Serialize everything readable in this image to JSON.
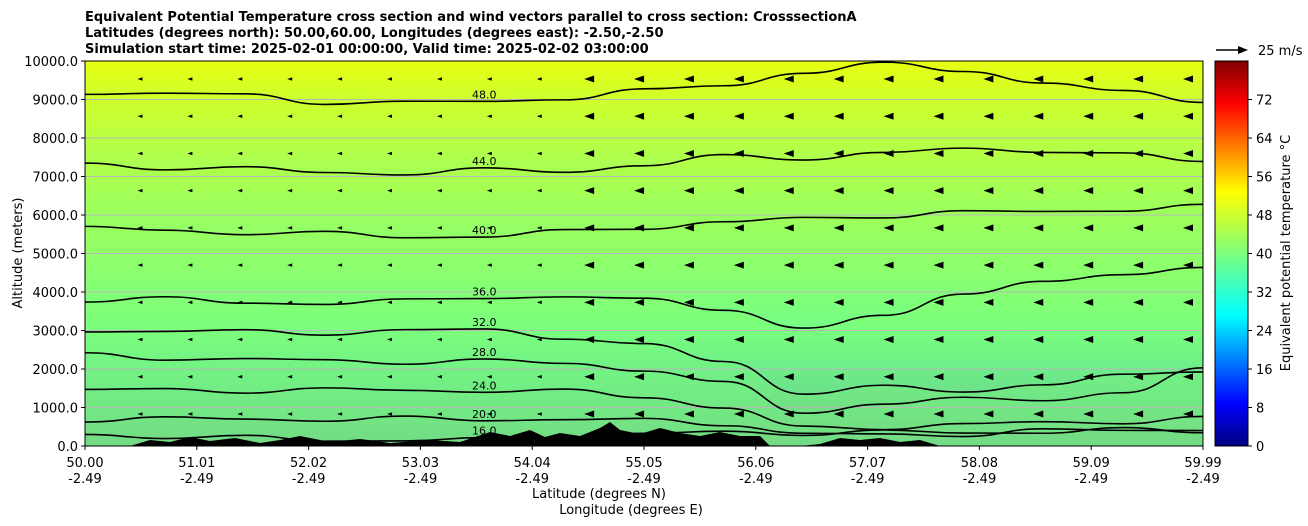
{
  "chart_data": {
    "type": "filled-contour-cross-section",
    "title_lines": [
      "Equivalent Potential Temperature cross section and wind vectors parallel to cross section: CrosssectionA",
      "Latitudes (degrees north): 50.00,60.00, Longitudes (degrees east): -2.50,-2.50",
      "Simulation start time: 2025-02-01 00:00:00, Valid time: 2025-02-02 03:00:00"
    ],
    "xlabel_lines": [
      "Latitude (degrees N)",
      "Longitude (degrees E)"
    ],
    "ylabel": "Altitude (meters)",
    "x_ticks": [
      {
        "lat": "50.00",
        "lon": "-2.49"
      },
      {
        "lat": "51.01",
        "lon": "-2.49"
      },
      {
        "lat": "52.02",
        "lon": "-2.49"
      },
      {
        "lat": "53.03",
        "lon": "-2.49"
      },
      {
        "lat": "54.04",
        "lon": "-2.49"
      },
      {
        "lat": "55.05",
        "lon": "-2.49"
      },
      {
        "lat": "56.06",
        "lon": "-2.49"
      },
      {
        "lat": "57.07",
        "lon": "-2.49"
      },
      {
        "lat": "58.08",
        "lon": "-2.49"
      },
      {
        "lat": "59.09",
        "lon": "-2.49"
      },
      {
        "lat": "59.99",
        "lon": "-2.49"
      }
    ],
    "xlim": [
      50.0,
      59.99
    ],
    "y_ticks": [
      "0.0",
      "1000.0",
      "2000.0",
      "3000.0",
      "4000.0",
      "5000.0",
      "6000.0",
      "7000.0",
      "8000.0",
      "9000.0",
      "10000.0"
    ],
    "ylim": [
      0,
      10000
    ],
    "grid": "horizontal",
    "colorbar": {
      "label": "Equivalent potential temperature $^\\circ$C",
      "label_text": "Equivalent potential temperature °C",
      "ticks": [
        "0",
        "8",
        "16",
        "24",
        "32",
        "40",
        "48",
        "56",
        "64",
        "72"
      ],
      "range": [
        0,
        80
      ],
      "colormap": "jet"
    },
    "quiver_key": {
      "label": "25 m/s"
    },
    "contours": [
      {
        "level": 16,
        "label": "16.0",
        "z": [
          300,
          250,
          200,
          170,
          150,
          150,
          250,
          300,
          350,
          350,
          350,
          350,
          380,
          400,
          400
        ]
      },
      {
        "level": 20,
        "label": "20.0",
        "z": [
          700,
          700,
          700,
          700,
          700,
          700,
          700,
          650,
          600,
          300,
          280,
          320,
          380,
          420,
          450
        ]
      },
      {
        "level": 24,
        "label": "24.0",
        "z": [
          1450,
          1450,
          1450,
          1450,
          1450,
          1450,
          1400,
          1300,
          1000,
          450,
          500,
          550,
          600,
          650,
          700
        ]
      },
      {
        "level": 28,
        "label": "28.0",
        "z": [
          2350,
          2300,
          2250,
          2200,
          2200,
          2200,
          2150,
          2000,
          1600,
          900,
          1100,
          1200,
          1250,
          1350,
          2000
        ]
      },
      {
        "level": 32,
        "label": "32.0",
        "z": [
          3000,
          3000,
          2950,
          2950,
          3000,
          3000,
          2850,
          2600,
          2200,
          1400,
          1500,
          1450,
          1600,
          1800,
          2000
        ]
      },
      {
        "level": 36,
        "label": "36.0",
        "z": [
          3800,
          3800,
          3750,
          3700,
          3750,
          3900,
          3850,
          3800,
          3600,
          3000,
          3400,
          4000,
          4200,
          4500,
          4650
        ]
      },
      {
        "level": 40,
        "label": "40.0",
        "z": [
          5650,
          5600,
          5550,
          5500,
          5450,
          5450,
          5550,
          5700,
          5800,
          5900,
          6000,
          6050,
          6100,
          6150,
          6200
        ]
      },
      {
        "level": 44,
        "label": "44.0",
        "z": [
          7300,
          7250,
          7200,
          7100,
          7100,
          7150,
          7150,
          7300,
          7500,
          7500,
          7600,
          7700,
          7700,
          7550,
          7400
        ]
      },
      {
        "level": 48,
        "label": "48.0",
        "z": [
          9200,
          9150,
          9100,
          8950,
          8900,
          8950,
          9050,
          9200,
          9400,
          9700,
          9900,
          9800,
          9400,
          9200,
          9000
        ]
      }
    ]
  }
}
